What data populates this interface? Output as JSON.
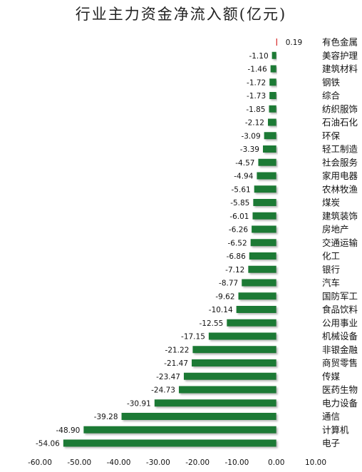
{
  "chart_data": {
    "type": "bar",
    "orientation": "horizontal",
    "title": "行业主力资金净流入额(亿元)",
    "categories": [
      "有色金属",
      "美容护理",
      "建筑材料",
      "钢铁",
      "综合",
      "纺织服饰",
      "石油石化",
      "环保",
      "轻工制造",
      "社会服务",
      "家用电器",
      "农林牧渔",
      "煤炭",
      "建筑装饰",
      "房地产",
      "交通运输",
      "化工",
      "银行",
      "汽车",
      "国防军工",
      "食品饮料",
      "公用事业",
      "机械设备",
      "非银金融",
      "商贸零售",
      "传媒",
      "医药生物",
      "电力设备",
      "通信",
      "计算机",
      "电子"
    ],
    "values": [
      0.19,
      -1.1,
      -1.46,
      -1.72,
      -1.73,
      -1.85,
      -2.12,
      -3.09,
      -3.39,
      -4.57,
      -4.94,
      -5.61,
      -5.85,
      -6.01,
      -6.26,
      -6.52,
      -6.86,
      -7.12,
      -8.77,
      -9.62,
      -10.14,
      -12.55,
      -17.15,
      -21.22,
      -21.47,
      -23.47,
      -24.73,
      -30.91,
      -39.28,
      -48.9,
      -54.06
    ],
    "value_labels": [
      "0.19",
      "-1.10",
      "-1.46",
      "-1.72",
      "-1.73",
      "-1.85",
      "-2.12",
      "-3.09",
      "-3.39",
      "-4.57",
      "-4.94",
      "-5.61",
      "-5.85",
      "-6.01",
      "-6.26",
      "-6.52",
      "-6.86",
      "-7.12",
      "-8.77",
      "-9.62",
      "-10.14",
      "-12.55",
      "-17.15",
      "-21.22",
      "-21.47",
      "-23.47",
      "-24.73",
      "-30.91",
      "-39.28",
      "-48.90",
      "-54.06"
    ],
    "xlim": [
      -60,
      10
    ],
    "xticks": [
      "-60.00",
      "-50.00",
      "-40.00",
      "-30.00",
      "-20.00",
      "-10.00",
      "0.00",
      "10.00"
    ],
    "xtick_values": [
      -60,
      -50,
      -40,
      -30,
      -20,
      -10,
      0,
      10
    ],
    "colors": {
      "negative": "#1a7a35",
      "positive": "#d62828"
    },
    "grid": false,
    "legend": "none"
  }
}
